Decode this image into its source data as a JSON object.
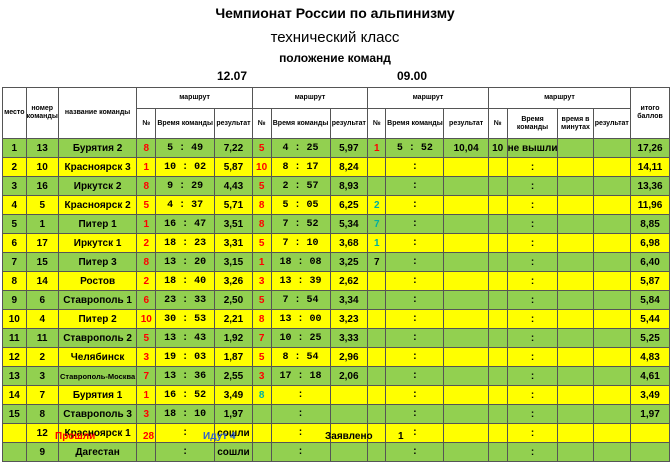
{
  "header": {
    "title": "Чемпионат России по альпинизму",
    "subtitle": "технический класс",
    "subtitle2": "положение команд",
    "date1": "12.07",
    "date2": "09.00"
  },
  "columns": {
    "place": "место",
    "team_no": "номер команды",
    "team_name": "название команды",
    "route": "маршрут",
    "no": "№",
    "team_time": "Время команды",
    "result": "результат",
    "time_minutes": "время в минутах",
    "total": "итого баллов"
  },
  "rows": [
    {
      "place": "1",
      "num": "13",
      "name": "Бурятия 2",
      "r1": "8",
      "t1": "5 : 49",
      "res1": "7,22",
      "r2": "5",
      "t2": "4 : 25",
      "res2": "5,97",
      "r3": "1",
      "t3": "5 : 52",
      "res3": "10,04",
      "r4": "10",
      "t4": "не вышли",
      "m4": "",
      "res4": "",
      "total": "17,26",
      "color": "g",
      "r3c": "red",
      "r4c": ""
    },
    {
      "place": "2",
      "num": "10",
      "name": "Красноярск 3",
      "r1": "1",
      "t1": "10 : 02",
      "res1": "5,87",
      "r2": "10",
      "t2": "8 : 17",
      "res2": "8,24",
      "r3": "",
      "t3": ":",
      "res3": "",
      "r4": "",
      "t4": ":",
      "m4": "",
      "res4": "",
      "total": "14,11",
      "color": "y",
      "r3c": "",
      "r4c": ""
    },
    {
      "place": "3",
      "num": "16",
      "name": "Иркутск 2",
      "r1": "8",
      "t1": "9 : 29",
      "res1": "4,43",
      "r2": "5",
      "t2": "2 : 57",
      "res2": "8,93",
      "r3": "",
      "t3": ":",
      "res3": "",
      "r4": "",
      "t4": ":",
      "m4": "",
      "res4": "",
      "total": "13,36",
      "color": "g",
      "r3c": "",
      "r4c": ""
    },
    {
      "place": "4",
      "num": "5",
      "name": "Красноярск 2",
      "r1": "5",
      "t1": "4 : 37",
      "res1": "5,71",
      "r2": "8",
      "t2": "5 : 05",
      "res2": "6,25",
      "r3": "2",
      "t3": ":",
      "res3": "",
      "r4": "",
      "t4": ":",
      "m4": "",
      "res4": "",
      "total": "11,96",
      "color": "y",
      "r3c": "teal",
      "r4c": ""
    },
    {
      "place": "5",
      "num": "1",
      "name": "Питер 1",
      "r1": "1",
      "t1": "16 : 47",
      "res1": "3,51",
      "r2": "8",
      "t2": "7 : 52",
      "res2": "5,34",
      "r3": "7",
      "t3": ":",
      "res3": "",
      "r4": "",
      "t4": ":",
      "m4": "",
      "res4": "",
      "total": "8,85",
      "color": "g",
      "r3c": "teal",
      "r4c": ""
    },
    {
      "place": "6",
      "num": "17",
      "name": "Иркутск 1",
      "r1": "2",
      "t1": "18 : 23",
      "res1": "3,31",
      "r2": "5",
      "t2": "7 : 10",
      "res2": "3,68",
      "r3": "1",
      "t3": ":",
      "res3": "",
      "r4": "",
      "t4": ":",
      "m4": "",
      "res4": "",
      "total": "6,98",
      "color": "y",
      "r3c": "teal",
      "r4c": ""
    },
    {
      "place": "7",
      "num": "15",
      "name": "Питер 3",
      "r1": "8",
      "t1": "13 : 20",
      "res1": "3,15",
      "r2": "1",
      "t2": "18 : 08",
      "res2": "3,25",
      "r3": "7",
      "t3": ":",
      "res3": "",
      "r4": "",
      "t4": ":",
      "m4": "",
      "res4": "",
      "total": "6,40",
      "color": "g",
      "r3c": "",
      "r4c": ""
    },
    {
      "place": "8",
      "num": "14",
      "name": "Ростов",
      "r1": "2",
      "t1": "18 : 40",
      "res1": "3,26",
      "r2": "3",
      "t2": "13 : 39",
      "res2": "2,62",
      "r3": "",
      "t3": ":",
      "res3": "",
      "r4": "",
      "t4": ":",
      "m4": "",
      "res4": "",
      "total": "5,87",
      "color": "y",
      "r3c": "",
      "r4c": ""
    },
    {
      "place": "9",
      "num": "6",
      "name": "Ставрополь 1",
      "r1": "6",
      "t1": "23 : 33",
      "res1": "2,50",
      "r2": "5",
      "t2": "7 : 54",
      "res2": "3,34",
      "r3": "",
      "t3": ":",
      "res3": "",
      "r4": "",
      "t4": ":",
      "m4": "",
      "res4": "",
      "total": "5,84",
      "color": "g",
      "r3c": "",
      "r4c": ""
    },
    {
      "place": "10",
      "num": "4",
      "name": "Питер 2",
      "r1": "10",
      "t1": "30 : 53",
      "res1": "2,21",
      "r2": "8",
      "t2": "13 : 00",
      "res2": "3,23",
      "r3": "",
      "t3": ":",
      "res3": "",
      "r4": "",
      "t4": ":",
      "m4": "",
      "res4": "",
      "total": "5,44",
      "color": "y",
      "r3c": "",
      "r4c": ""
    },
    {
      "place": "11",
      "num": "11",
      "name": "Ставрополь 2",
      "r1": "5",
      "t1": "13 : 43",
      "res1": "1,92",
      "r2": "7",
      "t2": "10 : 25",
      "res2": "3,33",
      "r3": "",
      "t3": ":",
      "res3": "",
      "r4": "",
      "t4": ":",
      "m4": "",
      "res4": "",
      "total": "5,25",
      "color": "g",
      "r3c": "",
      "r4c": ""
    },
    {
      "place": "12",
      "num": "2",
      "name": "Челябинск",
      "r1": "3",
      "t1": "19 : 03",
      "res1": "1,87",
      "r2": "5",
      "t2": "8 : 54",
      "res2": "2,96",
      "r3": "",
      "t3": ":",
      "res3": "",
      "r4": "",
      "t4": ":",
      "m4": "",
      "res4": "",
      "total": "4,83",
      "color": "y",
      "r3c": "",
      "r4c": ""
    },
    {
      "place": "13",
      "num": "3",
      "name": "Ставрополь-Москва",
      "r1": "7",
      "t1": "13 : 36",
      "res1": "2,55",
      "r2": "3",
      "t2": "17 : 18",
      "res2": "2,06",
      "r3": "",
      "t3": ":",
      "res3": "",
      "r4": "",
      "t4": ":",
      "m4": "",
      "res4": "",
      "total": "4,61",
      "color": "g",
      "r3c": "",
      "r4c": "",
      "small": true
    },
    {
      "place": "14",
      "num": "7",
      "name": "Бурятия 1",
      "r1": "1",
      "t1": "16 : 52",
      "res1": "3,49",
      "r2": "8",
      "t2": ":",
      "res2": "",
      "r3": "",
      "t3": ":",
      "res3": "",
      "r4": "",
      "t4": ":",
      "m4": "",
      "res4": "",
      "total": "3,49",
      "color": "y",
      "r3c": "",
      "r4c": "",
      "r2c": "teal"
    },
    {
      "place": "15",
      "num": "8",
      "name": "Ставрополь 3",
      "r1": "3",
      "t1": "18 : 10",
      "res1": "1,97",
      "r2": "",
      "t2": ":",
      "res2": "",
      "r3": "",
      "t3": ":",
      "res3": "",
      "r4": "",
      "t4": ":",
      "m4": "",
      "res4": "",
      "total": "1,97",
      "color": "g",
      "r3c": "",
      "r4c": ""
    },
    {
      "place": "",
      "num": "12",
      "name": "Красноярск 1",
      "r1": "",
      "t1": ":",
      "res1": "сошли",
      "r2": "",
      "t2": ":",
      "res2": "",
      "r3": "",
      "t3": ":",
      "res3": "",
      "r4": "",
      "t4": ":",
      "m4": "",
      "res4": "",
      "total": "",
      "color": "y",
      "r3c": "",
      "r4c": ""
    },
    {
      "place": "",
      "num": "9",
      "name": "Дагестан",
      "r1": "",
      "t1": ":",
      "res1": "сошли",
      "r2": "",
      "t2": ":",
      "res2": "",
      "r3": "",
      "t3": ":",
      "res3": "",
      "r4": "",
      "t4": ":",
      "m4": "",
      "res4": "",
      "total": "",
      "color": "g",
      "r3c": "",
      "r4c": ""
    }
  ],
  "footer": {
    "passed_label": "Прошли",
    "passed_value": "28",
    "going_label": "Идут 4",
    "declared_label": "Заявлено",
    "declared_value": "1"
  },
  "colors": {
    "row_green": "#92d050",
    "row_yellow": "#ffff00",
    "accent_red": "#ff0000",
    "accent_teal": "#00b0a0",
    "accent_blue": "#2f5fd0"
  }
}
